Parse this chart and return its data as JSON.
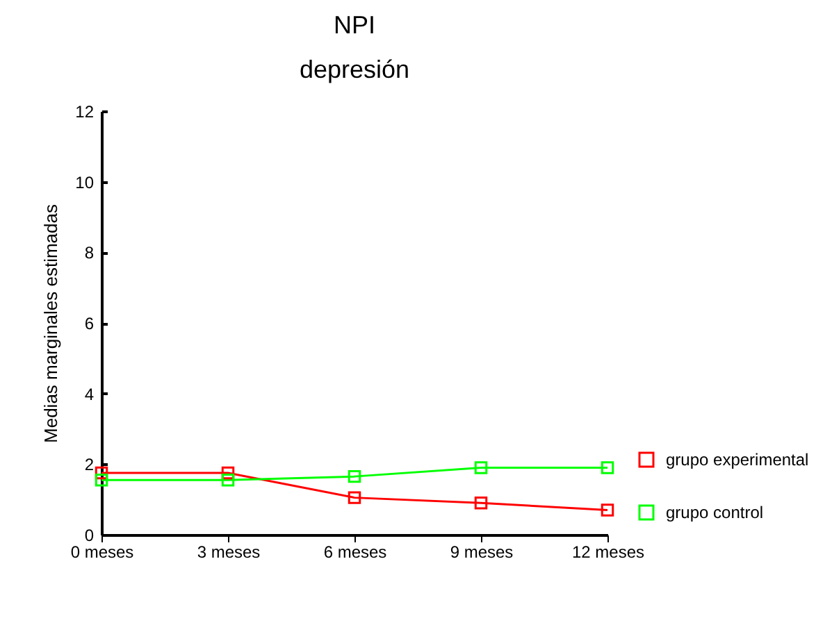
{
  "chart_data": {
    "type": "line",
    "title": "NPI",
    "subtitle": "depresión",
    "ylabel": "Medias marginales estimadas",
    "categories": [
      "0 meses",
      "3 meses",
      "6 meses",
      "9 meses",
      "12 meses"
    ],
    "series": [
      {
        "name": "grupo experimental",
        "color": "#ff0000",
        "values": [
          1.75,
          1.75,
          1.05,
          0.9,
          0.7
        ]
      },
      {
        "name": "grupo control",
        "color": "#00ff00",
        "values": [
          1.55,
          1.55,
          1.65,
          1.9,
          1.9
        ]
      }
    ],
    "ylim": [
      0,
      12
    ],
    "yticks": [
      0,
      2,
      4,
      6,
      8,
      10,
      12
    ],
    "grid": false,
    "legend": "bottom right",
    "marker": "square",
    "line_style": "solid"
  }
}
